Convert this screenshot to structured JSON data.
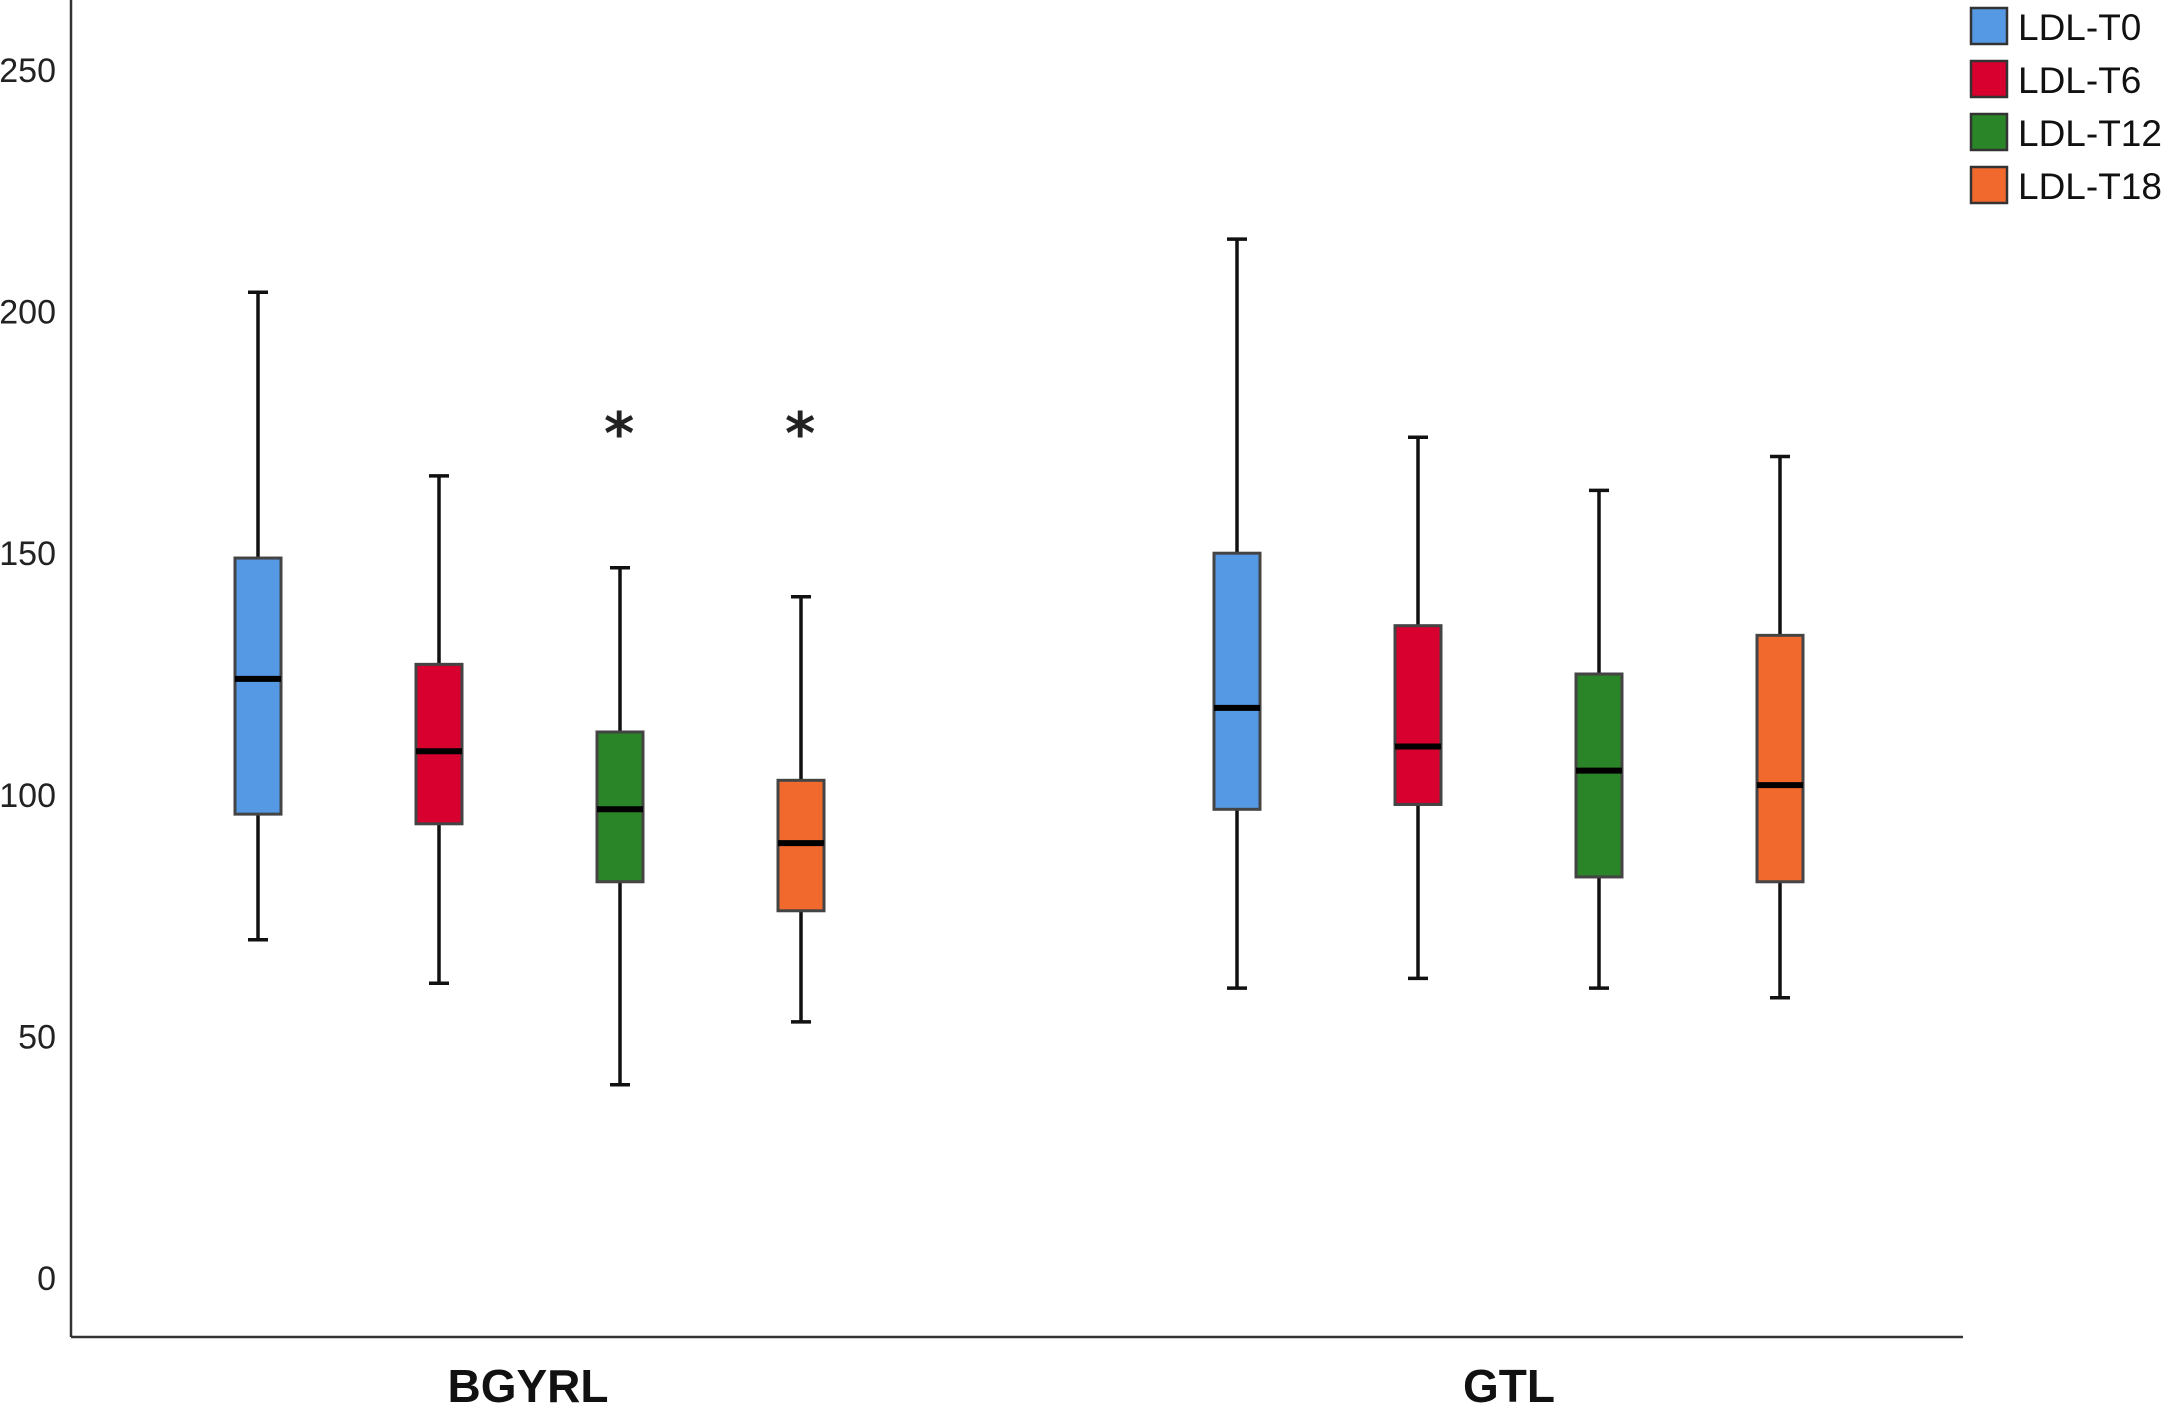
{
  "chart_data": {
    "type": "boxplot",
    "categories": [
      "BGYRL",
      "GTL"
    ],
    "ylim": [
      0,
      250
    ],
    "yticks": [
      0,
      50,
      100,
      150,
      200,
      250
    ],
    "title": "",
    "xlabel": "",
    "ylabel": "",
    "grid": false,
    "legend_position": "top-right",
    "series": [
      {
        "name": "LDL-T0",
        "color": "#5599E5",
        "boxes": [
          {
            "category": "BGYRL",
            "min": 70,
            "q1": 96,
            "median": 124,
            "q3": 149,
            "max": 204,
            "outliers": []
          },
          {
            "category": "GTL",
            "min": 60,
            "q1": 97,
            "median": 118,
            "q3": 150,
            "max": 215,
            "outliers": []
          }
        ]
      },
      {
        "name": "LDL-T6",
        "color": "#D7002E",
        "boxes": [
          {
            "category": "BGYRL",
            "min": 61,
            "q1": 94,
            "median": 109,
            "q3": 127,
            "max": 166,
            "outliers": []
          },
          {
            "category": "GTL",
            "min": 62,
            "q1": 98,
            "median": 110,
            "q3": 135,
            "max": 174,
            "outliers": []
          }
        ]
      },
      {
        "name": "LDL-T12",
        "color": "#2A8428",
        "boxes": [
          {
            "category": "BGYRL",
            "min": 40,
            "q1": 82,
            "median": 97,
            "q3": 113,
            "max": 147,
            "outliers": [
              176
            ]
          },
          {
            "category": "GTL",
            "min": 60,
            "q1": 83,
            "median": 105,
            "q3": 125,
            "max": 163,
            "outliers": []
          }
        ]
      },
      {
        "name": "LDL-T18",
        "color": "#F2692E",
        "boxes": [
          {
            "category": "BGYRL",
            "min": 53,
            "q1": 76,
            "median": 90,
            "q3": 103,
            "max": 141,
            "outliers": [
              176
            ]
          },
          {
            "category": "GTL",
            "min": 58,
            "q1": 82,
            "median": 102,
            "q3": 133,
            "max": 170,
            "outliers": []
          }
        ]
      }
    ]
  }
}
